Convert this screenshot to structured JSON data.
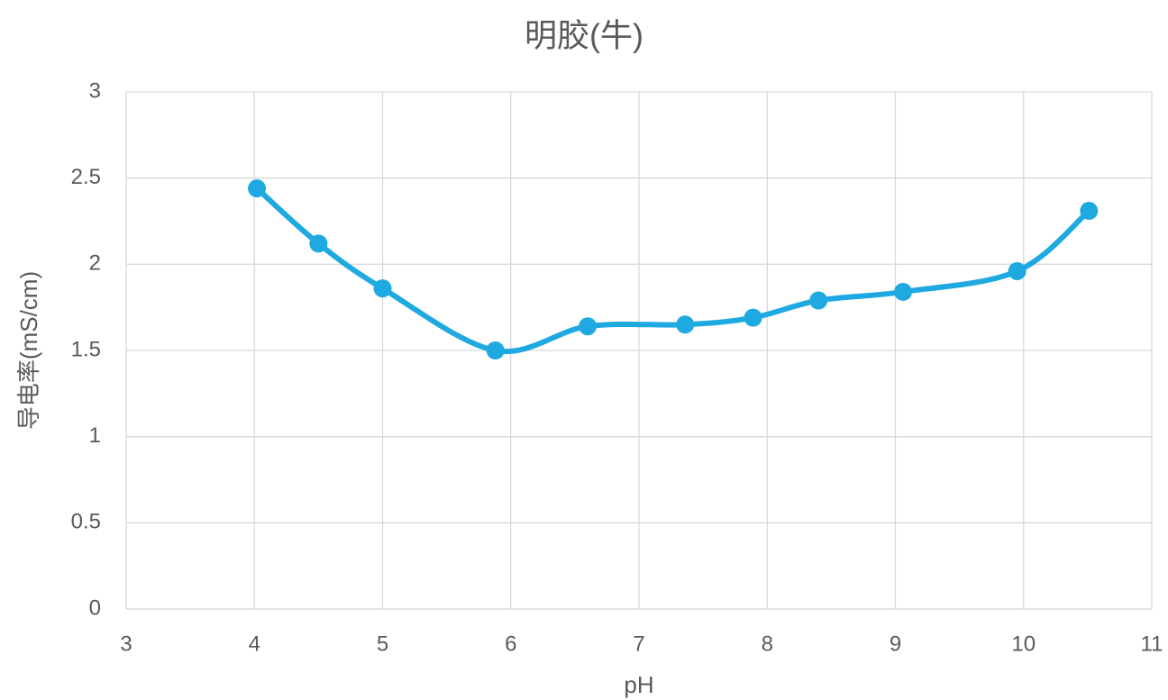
{
  "chart_data": {
    "type": "line",
    "title": "明胶(牛)",
    "x_label": "pH",
    "y_label": "导电率(mS/cm)",
    "x": [
      4.02,
      4.5,
      5.0,
      5.88,
      6.6,
      7.36,
      7.89,
      8.4,
      9.06,
      9.95,
      10.51
    ],
    "values": [
      2.44,
      2.12,
      1.86,
      1.5,
      1.64,
      1.65,
      1.69,
      1.79,
      1.84,
      1.96,
      2.31
    ],
    "color": "#1fa9e1",
    "smooth": true,
    "markers": true,
    "xlim": [
      3,
      11
    ],
    "xticks": [
      3,
      4,
      5,
      6,
      7,
      8,
      9,
      10,
      11
    ],
    "ylim": [
      0,
      3
    ],
    "yticks": [
      0,
      0.5,
      1,
      1.5,
      2,
      2.5,
      3
    ],
    "grid": true
  }
}
